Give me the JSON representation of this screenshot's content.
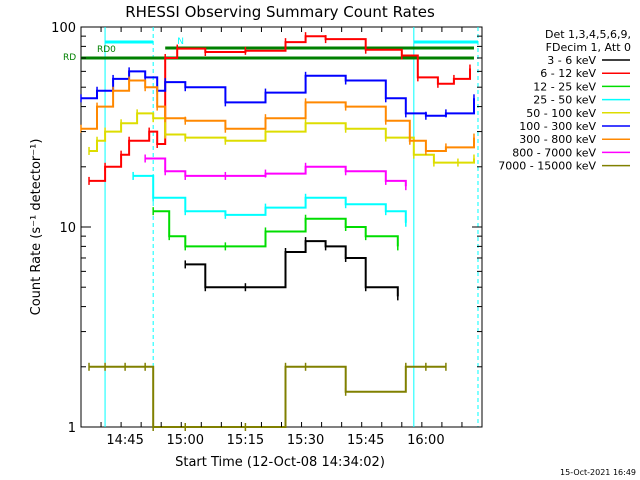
{
  "chart_data": {
    "type": "line",
    "title": "RHESSI Observing Summary Count Rates",
    "xlabel": "Start Time (12-Oct-08 14:34:02)",
    "ylabel": "Count Rate (s⁻¹ detector⁻¹)",
    "yscale": "log",
    "ylim": [
      1,
      100
    ],
    "xlim_minutes": [
      "14:34",
      "16:14"
    ],
    "x_ticks": [
      "14:45",
      "15:00",
      "15:15",
      "15:30",
      "15:45",
      "16:00"
    ],
    "y_ticks": [
      "1",
      "10",
      "100"
    ],
    "legend_header": [
      "Det 1,3,4,5,6,9,",
      "FDecim 1, Att 0"
    ],
    "legend_position": "right",
    "series": [
      {
        "name": "3 - 6 keV",
        "color": "#000000",
        "x": [
          "14:45",
          "14:51",
          "14:55",
          "15:00",
          "15:05",
          "15:15",
          "15:25",
          "15:30",
          "15:35",
          "15:40",
          "15:45",
          "15:53"
        ],
        "values": [
          null,
          null,
          null,
          6.5,
          5,
          5,
          7.5,
          8.5,
          8,
          7,
          5,
          4.5
        ]
      },
      {
        "name": "6 - 12 keV",
        "color": "#ff0000",
        "x": [
          "14:36",
          "14:40",
          "14:44",
          "14:46",
          "14:51",
          "14:53",
          "14:55",
          "14:58",
          "15:05",
          "15:15",
          "15:25",
          "15:30",
          "15:35",
          "15:45",
          "15:54",
          "15:58",
          "16:03",
          "16:07",
          "16:11"
        ],
        "values": [
          17,
          20,
          23,
          27,
          30,
          26,
          70,
          78,
          75,
          76,
          84,
          90,
          87,
          77,
          72,
          56,
          52,
          55,
          62
        ]
      },
      {
        "name": "12 - 25 keV",
        "color": "#00dd00",
        "x": [
          "14:52",
          "14:56",
          "15:00",
          "15:10",
          "15:20",
          "15:30",
          "15:40",
          "15:45",
          "15:53"
        ],
        "values": [
          12,
          9,
          8,
          8,
          9.5,
          11,
          10,
          9,
          8
        ]
      },
      {
        "name": "25 - 50 keV",
        "color": "#00ffff",
        "x": [
          "14:47",
          "14:52",
          "15:00",
          "15:10",
          "15:20",
          "15:30",
          "15:40",
          "15:50",
          "15:55"
        ],
        "values": [
          18,
          14,
          12,
          11.5,
          12.5,
          14,
          13,
          12,
          10.5
        ]
      },
      {
        "name": "50 - 100 keV",
        "color": "#dddd00",
        "x": [
          "14:36",
          "14:38",
          "14:40",
          "14:44",
          "14:48",
          "14:52",
          "14:55",
          "15:00",
          "15:10",
          "15:20",
          "15:30",
          "15:40",
          "15:50",
          "15:57",
          "16:02",
          "16:08",
          "16:12"
        ],
        "values": [
          24,
          27,
          30,
          33,
          37,
          35,
          29,
          28,
          27,
          30,
          33,
          31,
          28,
          23,
          21,
          21,
          22
        ]
      },
      {
        "name": "100 - 300 keV",
        "color": "#0000ff",
        "x": [
          "14:34",
          "14:38",
          "14:42",
          "14:46",
          "14:50",
          "14:53",
          "14:55",
          "15:00",
          "15:10",
          "15:20",
          "15:30",
          "15:40",
          "15:50",
          "15:55",
          "16:00",
          "16:05",
          "16:12"
        ],
        "values": [
          44,
          48,
          55,
          60,
          56,
          48,
          53,
          50,
          42,
          47,
          57,
          54,
          44,
          37,
          36,
          37,
          44
        ]
      },
      {
        "name": "300 - 800 keV",
        "color": "#ff8800",
        "x": [
          "14:34",
          "14:38",
          "14:42",
          "14:46",
          "14:50",
          "14:53",
          "14:55",
          "15:00",
          "15:10",
          "15:20",
          "15:30",
          "15:40",
          "15:50",
          "15:56",
          "16:00",
          "16:05",
          "16:12"
        ],
        "values": [
          31,
          40,
          48,
          54,
          50,
          40,
          35,
          34,
          31,
          35,
          42,
          40,
          34,
          27,
          24,
          25,
          28
        ]
      },
      {
        "name": "800 - 7000 keV",
        "color": "#ff00ff",
        "x": [
          "14:50",
          "14:55",
          "15:00",
          "15:10",
          "15:20",
          "15:30",
          "15:40",
          "15:50",
          "15:55"
        ],
        "values": [
          22,
          19,
          18,
          18,
          18.5,
          20,
          19,
          17,
          16
        ]
      },
      {
        "name": "7000 - 15000 keV",
        "color": "#808000",
        "x": [
          "14:36",
          "14:40",
          "14:45",
          "14:50",
          "14:52",
          "15:00",
          "15:15",
          "15:25",
          "15:30",
          "15:40",
          "15:55",
          "16:00",
          "16:05"
        ],
        "values": [
          2,
          2,
          2,
          2,
          1,
          1,
          1,
          2,
          2,
          1.5,
          2,
          2,
          2
        ]
      }
    ],
    "saa_labels": [
      "RD0",
      "RD"
    ],
    "night_label": "N"
  },
  "footer_date": "15-Oct-2021 16:49"
}
